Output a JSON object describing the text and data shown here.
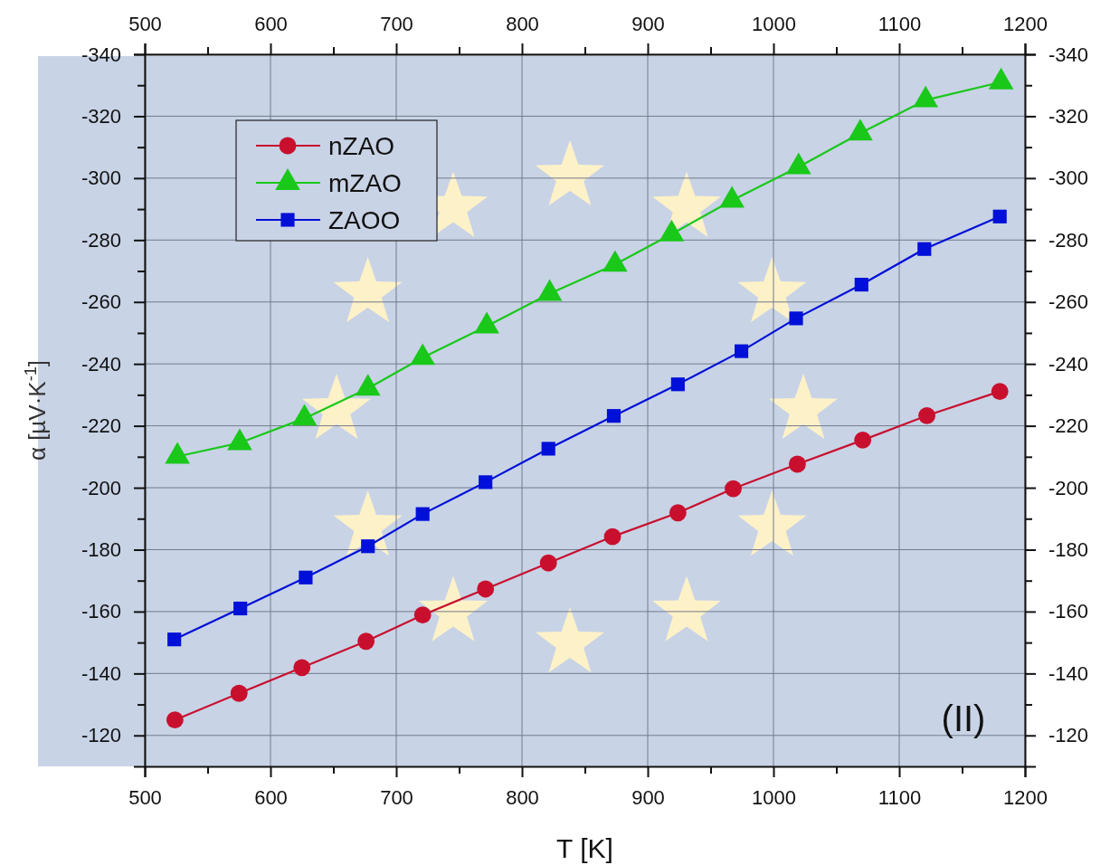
{
  "chart_data": {
    "type": "line",
    "xlabel": "T [K]",
    "ylabel": "α [µV·K$^{-1}$]",
    "annotations": [
      "(II)"
    ],
    "xlim": [
      500,
      1200
    ],
    "ylim": [
      -110,
      -340
    ],
    "xticks": [
      500,
      {
        "value": 550,
        "label": null
      },
      600,
      {
        "value": 650,
        "label": null
      },
      700,
      {
        "value": 750,
        "label": null
      },
      800,
      {
        "value": 850,
        "label": null
      },
      900,
      {
        "value": 950,
        "label": null
      },
      1000,
      {
        "value": 1050,
        "label": null
      },
      1100,
      {
        "value": 1150,
        "label": null
      },
      1200
    ],
    "x2lim": [
      500,
      1200
    ],
    "x2ticks": [
      500,
      {
        "value": 550,
        "label": null
      },
      600,
      {
        "value": 650,
        "label": null
      },
      700,
      {
        "value": 750,
        "label": null
      },
      800,
      {
        "value": 850,
        "label": null
      },
      900,
      {
        "value": 950,
        "label": null
      },
      1000,
      {
        "value": 1050,
        "label": null
      },
      1100,
      {
        "value": 1150,
        "label": null
      },
      1200
    ],
    "yticks": [
      -340,
      {
        "value": -330,
        "label": null
      },
      -320,
      {
        "value": -310,
        "label": null
      },
      -300,
      {
        "value": -290,
        "label": null
      },
      -280,
      {
        "value": -270,
        "label": null
      },
      -260,
      {
        "value": -250,
        "label": null
      },
      -240,
      {
        "value": -230,
        "label": null
      },
      -220,
      {
        "value": -210,
        "label": null
      },
      -200,
      {
        "value": -190,
        "label": null
      },
      -180,
      {
        "value": -170,
        "label": null
      },
      -160,
      {
        "value": -150,
        "label": null
      },
      -140,
      {
        "value": -130,
        "label": null
      },
      -120
    ],
    "y2lim": [
      -110,
      -340
    ],
    "y2ticks": [
      -340,
      {
        "value": -330,
        "label": null
      },
      -320,
      {
        "value": -310,
        "label": null
      },
      -300,
      {
        "value": -290,
        "label": null
      },
      -280,
      {
        "value": -270,
        "label": null
      },
      -260,
      {
        "value": -250,
        "label": null
      },
      -240,
      {
        "value": -230,
        "label": null
      },
      -220,
      {
        "value": -210,
        "label": null
      },
      -200,
      {
        "value": -190,
        "label": null
      },
      -180,
      {
        "value": -170,
        "label": null
      },
      -160,
      {
        "value": -150,
        "label": null
      },
      -140,
      {
        "value": -130,
        "label": null
      },
      -120
    ],
    "grid": true,
    "legend": "top left",
    "line_style": "solid",
    "series": [
      {
        "name": "nZAO",
        "color": "#c8102e",
        "marker": "circle",
        "x": [
          524,
          575,
          625,
          676,
          721,
          771,
          821,
          872,
          924,
          968,
          1019,
          1071,
          1122,
          1180
        ],
        "values": [
          -125,
          -133.6,
          -141.9,
          -150.4,
          -158.9,
          -167.3,
          -175.7,
          -184.2,
          -191.9,
          -199.7,
          -207.6,
          -215.4,
          -223.3,
          -231.1
        ]
      },
      {
        "name": "mZAO",
        "color": "#19c819",
        "marker": "triangle",
        "x": [
          526,
          575.5,
          627,
          677.5,
          721,
          772,
          822,
          874,
          919,
          967,
          1020,
          1069,
          1121,
          1181
        ],
        "values": [
          -210.1,
          -214.5,
          -222.4,
          -232.1,
          -242,
          -252.2,
          -262.7,
          -272.1,
          -281.9,
          -292.8,
          -303.6,
          -314.5,
          -325.2,
          -331
        ]
      },
      {
        "name": "ZAOO",
        "color": "#0010d8",
        "marker": "square",
        "x": [
          523.5,
          576,
          628,
          677.5,
          721,
          771,
          821,
          873,
          924,
          974.5,
          1018,
          1070,
          1120,
          1180
        ],
        "values": [
          -151,
          -161,
          -171,
          -181.1,
          -191.5,
          -201.8,
          -212.6,
          -223.2,
          -233.4,
          -244.1,
          -254.7,
          -265.6,
          -277.1,
          -287.6
        ]
      }
    ]
  }
}
